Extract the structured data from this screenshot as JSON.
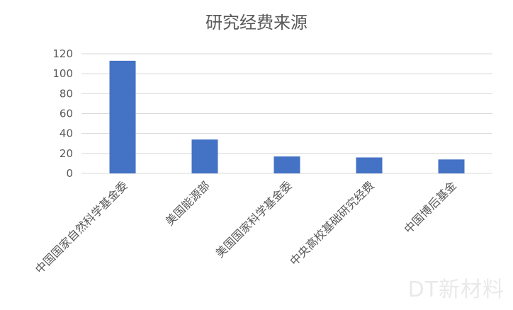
{
  "chart_data": {
    "type": "bar",
    "title": "研究经费来源",
    "xlabel": "",
    "ylabel": "",
    "categories": [
      "中国国家自然科学基金委",
      "美国能源部",
      "美国国家科学基金委",
      "中央高校基础研究经费",
      "中国博后基金"
    ],
    "values": [
      113,
      34,
      17,
      16,
      14
    ],
    "ylim": [
      0,
      120
    ],
    "yticks": [
      0,
      20,
      40,
      60,
      80,
      100,
      120
    ],
    "grid": true,
    "legend": "none",
    "colors": {
      "bar": "#4472C4",
      "grid": "#d9d9d9",
      "axis": "#d9d9d9",
      "text": "#595959"
    }
  },
  "watermark": "DT新材料"
}
